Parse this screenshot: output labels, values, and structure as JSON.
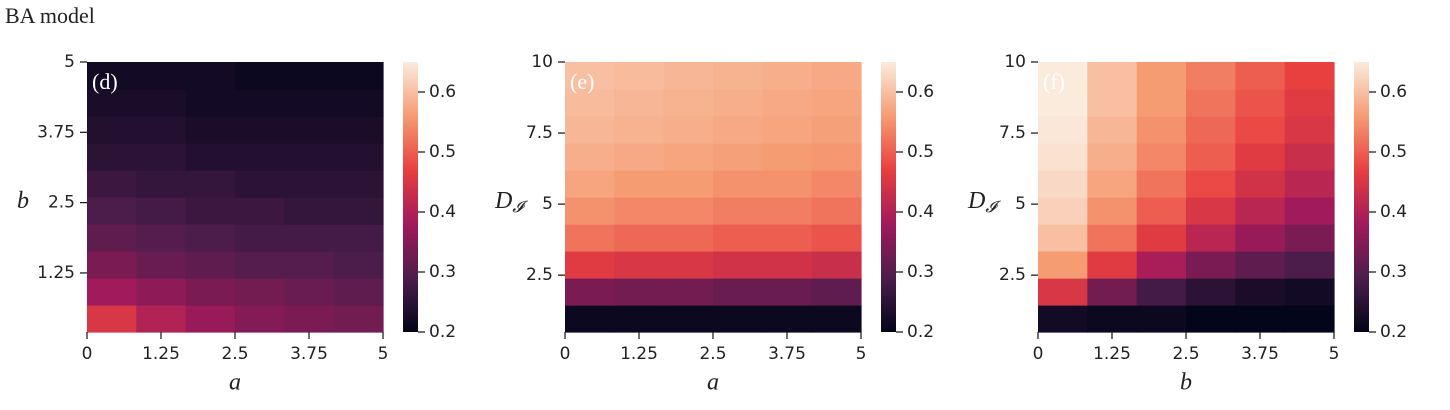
{
  "title": "BA model",
  "chart_data": [
    {
      "type": "heatmap",
      "label": "(d)",
      "xlabel": "a",
      "ylabel": "b",
      "xlim": [
        0,
        5
      ],
      "ylim": [
        0.2,
        5
      ],
      "xticks": [
        0,
        1.25,
        2.5,
        3.75,
        5
      ],
      "yticks": [
        1.25,
        2.5,
        3.75,
        5
      ],
      "clim": [
        0.2,
        0.65
      ],
      "cticks": [
        0.2,
        0.3,
        0.4,
        0.5,
        0.6
      ],
      "colormap": [
        "#03051a",
        "#4c1d4b",
        "#a11a5b",
        "#e83f3f",
        "#f69c73",
        "#faebdd"
      ],
      "z": [
        [
          0.45,
          0.4,
          0.37,
          0.35,
          0.34,
          0.33
        ],
        [
          0.38,
          0.36,
          0.34,
          0.33,
          0.32,
          0.31
        ],
        [
          0.34,
          0.32,
          0.31,
          0.3,
          0.3,
          0.29
        ],
        [
          0.31,
          0.3,
          0.29,
          0.28,
          0.28,
          0.28
        ],
        [
          0.29,
          0.28,
          0.27,
          0.27,
          0.26,
          0.26
        ],
        [
          0.27,
          0.26,
          0.26,
          0.25,
          0.25,
          0.25
        ],
        [
          0.25,
          0.25,
          0.24,
          0.24,
          0.24,
          0.24
        ],
        [
          0.24,
          0.24,
          0.23,
          0.23,
          0.23,
          0.23
        ],
        [
          0.23,
          0.23,
          0.22,
          0.22,
          0.22,
          0.22
        ],
        [
          0.22,
          0.22,
          0.22,
          0.21,
          0.21,
          0.21
        ]
      ]
    },
    {
      "type": "heatmap",
      "label": "(e)",
      "xlabel": "a",
      "ylabel": "D",
      "ylabel_sub": "𝓘",
      "xlim": [
        0,
        5
      ],
      "ylim": [
        0.5,
        10
      ],
      "xticks": [
        0,
        1.25,
        2.5,
        3.75,
        5
      ],
      "yticks": [
        2.5,
        5,
        7.5,
        10
      ],
      "clim": [
        0.2,
        0.65
      ],
      "cticks": [
        0.2,
        0.3,
        0.4,
        0.5,
        0.6
      ],
      "colormap": [
        "#03051a",
        "#4c1d4b",
        "#a11a5b",
        "#e83f3f",
        "#f69c73",
        "#faebdd"
      ],
      "z": [
        [
          0.21,
          0.21,
          0.21,
          0.21,
          0.21,
          0.21
        ],
        [
          0.34,
          0.33,
          0.33,
          0.32,
          0.32,
          0.31
        ],
        [
          0.46,
          0.45,
          0.45,
          0.44,
          0.44,
          0.43
        ],
        [
          0.52,
          0.51,
          0.51,
          0.5,
          0.5,
          0.49
        ],
        [
          0.55,
          0.54,
          0.54,
          0.53,
          0.53,
          0.52
        ],
        [
          0.57,
          0.56,
          0.56,
          0.55,
          0.55,
          0.54
        ],
        [
          0.58,
          0.575,
          0.57,
          0.565,
          0.56,
          0.555
        ],
        [
          0.59,
          0.585,
          0.58,
          0.575,
          0.57,
          0.565
        ],
        [
          0.595,
          0.59,
          0.585,
          0.58,
          0.575,
          0.57
        ],
        [
          0.6,
          0.595,
          0.59,
          0.585,
          0.58,
          0.575
        ]
      ]
    },
    {
      "type": "heatmap",
      "label": "(f)",
      "xlabel": "b",
      "ylabel": "D",
      "ylabel_sub": "𝓘",
      "xlim": [
        0,
        5
      ],
      "ylim": [
        0.5,
        10
      ],
      "xticks": [
        0,
        1.25,
        2.5,
        3.75,
        5
      ],
      "yticks": [
        2.5,
        5,
        7.5,
        10
      ],
      "clim": [
        0.2,
        0.65
      ],
      "cticks": [
        0.2,
        0.3,
        0.4,
        0.5,
        0.6
      ],
      "colormap": [
        "#03051a",
        "#4c1d4b",
        "#a11a5b",
        "#e83f3f",
        "#f69c73",
        "#faebdd"
      ],
      "z": [
        [
          0.22,
          0.21,
          0.21,
          0.2,
          0.2,
          0.2
        ],
        [
          0.45,
          0.33,
          0.28,
          0.25,
          0.23,
          0.22
        ],
        [
          0.56,
          0.46,
          0.39,
          0.34,
          0.31,
          0.29
        ],
        [
          0.6,
          0.52,
          0.46,
          0.41,
          0.37,
          0.34
        ],
        [
          0.62,
          0.55,
          0.5,
          0.45,
          0.41,
          0.38
        ],
        [
          0.63,
          0.57,
          0.52,
          0.48,
          0.44,
          0.41
        ],
        [
          0.64,
          0.58,
          0.54,
          0.5,
          0.46,
          0.43
        ],
        [
          0.645,
          0.59,
          0.55,
          0.51,
          0.48,
          0.45
        ],
        [
          0.65,
          0.6,
          0.56,
          0.52,
          0.49,
          0.46
        ],
        [
          0.65,
          0.6,
          0.56,
          0.53,
          0.5,
          0.47
        ]
      ]
    }
  ]
}
